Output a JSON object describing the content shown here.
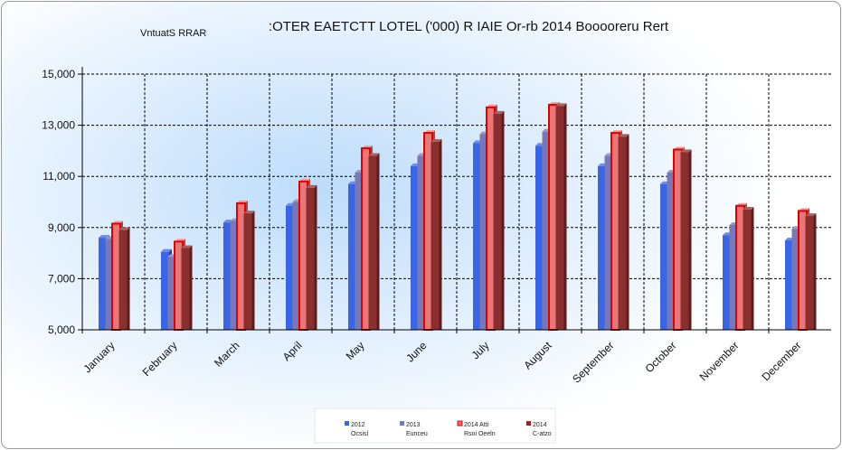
{
  "chart_data": {
    "type": "bar",
    "title": ":OTER EAETCTT LOTEL ('000) R IAIE Or-rb 2014 Booooreru Rert",
    "subtitle": "VntuatS  RRAR",
    "categories": [
      "January",
      "February",
      "March",
      "April",
      "May",
      "June",
      "July",
      "August",
      "September",
      "October",
      "November",
      "December"
    ],
    "ylim": [
      5000,
      15000
    ],
    "yticks": [
      "5,000",
      "7,000",
      "9,000",
      "11,000",
      "13,000",
      "15,000"
    ],
    "ytick_values": [
      5000,
      7000,
      9000,
      11000,
      13000,
      15000
    ],
    "grid": true,
    "legend_position": "bottom",
    "series": [
      {
        "name": "2012",
        "name2": "Ocsisl",
        "color": "#3a66e6",
        "values": [
          8600,
          8050,
          9200,
          9850,
          10700,
          11400,
          12300,
          12200,
          11400,
          10700,
          8700,
          8500
        ]
      },
      {
        "name": "2013",
        "name2": "Eunceu",
        "color": "#7878b4",
        "values": [
          8550,
          7850,
          9250,
          10000,
          11150,
          11800,
          12650,
          12750,
          11800,
          11150,
          9100,
          8950
        ]
      },
      {
        "name": "2014 Atti",
        "name2": "Rsoi Oeeln",
        "color": "#e87878",
        "values": [
          9150,
          8450,
          9950,
          10800,
          12100,
          12700,
          13700,
          13800,
          12700,
          12050,
          9850,
          9650
        ]
      },
      {
        "name": "2014",
        "name2": "C-atzo",
        "color": "#8b2e2e",
        "values": [
          8900,
          8200,
          9550,
          10550,
          11800,
          12350,
          13450,
          13750,
          12550,
          11950,
          9700,
          9450
        ]
      }
    ]
  }
}
